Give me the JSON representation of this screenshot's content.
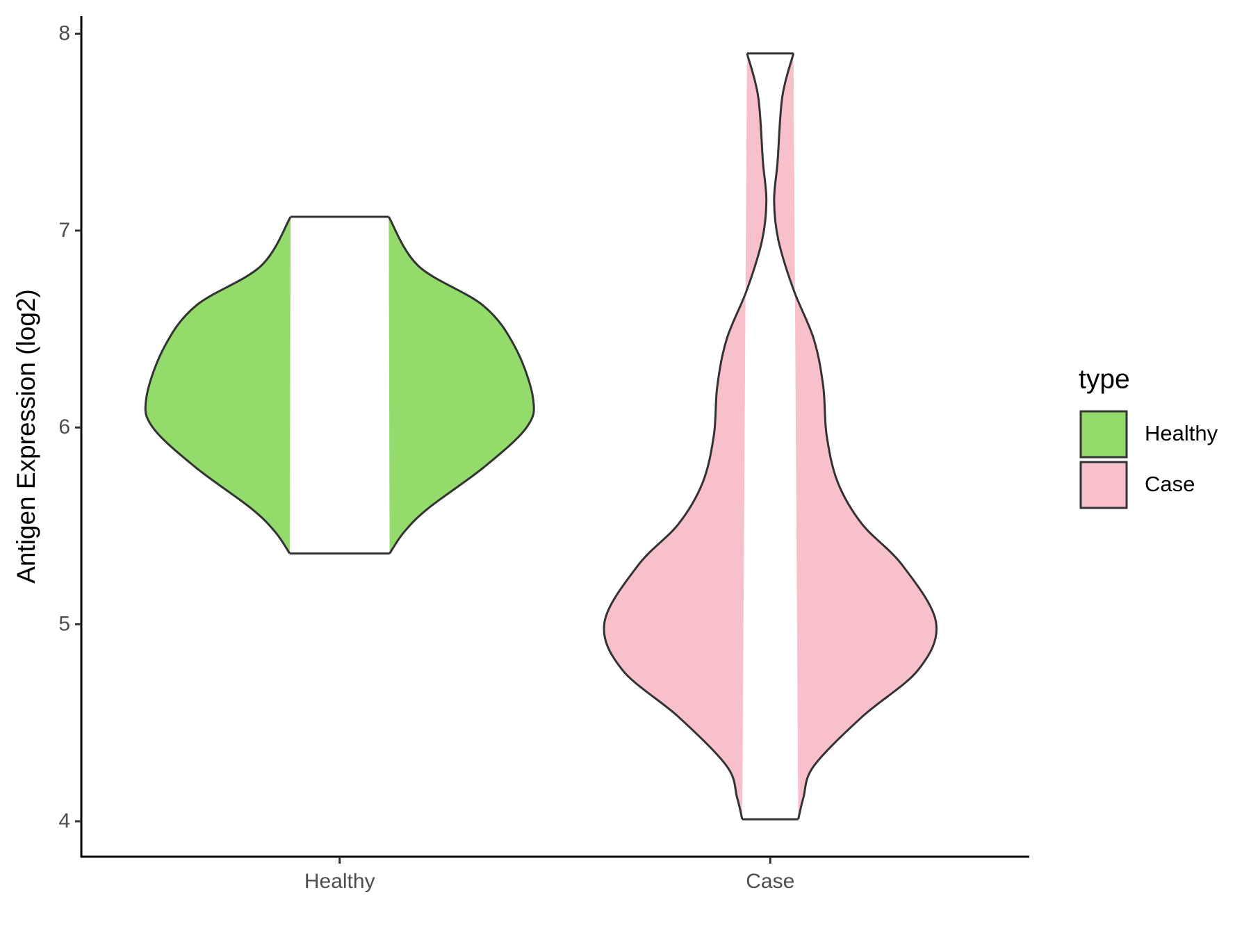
{
  "chart_data": {
    "type": "violin",
    "y_label": "Antigen Expression (log2)",
    "categories": [
      "Healthy",
      "Case"
    ],
    "legend_title": "type",
    "legend": "right",
    "ylim": [
      3.82,
      8.09
    ],
    "yticks": [
      4,
      5,
      6,
      7,
      8
    ],
    "series": [
      {
        "name": "Healthy",
        "color": "#93db6b",
        "y": [
          7.07,
          6.82,
          6.62,
          6.41,
          6.15,
          6.0,
          5.8,
          5.59,
          5.47,
          5.36
        ],
        "width": [
          0.114,
          0.183,
          0.333,
          0.407,
          0.449,
          0.434,
          0.336,
          0.206,
          0.15,
          0.116
        ]
      },
      {
        "name": "Case",
        "color": "#f7c0cb",
        "y": [
          7.9,
          7.68,
          7.35,
          7.15,
          6.95,
          6.7,
          6.45,
          6.21,
          5.96,
          5.72,
          5.51,
          5.3,
          5.01,
          4.77,
          4.53,
          4.28,
          4.12,
          4.01
        ],
        "width": [
          0.054,
          0.028,
          0.017,
          0.009,
          0.019,
          0.054,
          0.101,
          0.123,
          0.131,
          0.157,
          0.213,
          0.307,
          0.385,
          0.344,
          0.213,
          0.101,
          0.077,
          0.065
        ]
      }
    ]
  }
}
